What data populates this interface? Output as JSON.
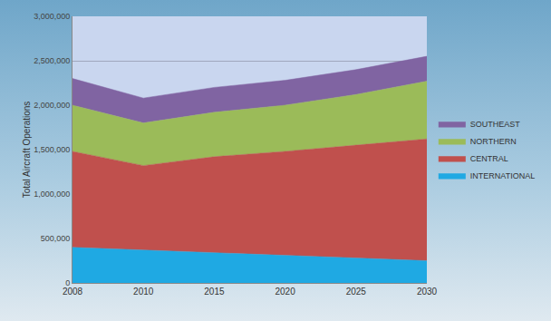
{
  "chart_data": {
    "type": "area",
    "stacked": true,
    "y_label": "Total Aircraft Operations",
    "categories": [
      "2008",
      "2010",
      "2015",
      "2020",
      "2025",
      "2030"
    ],
    "series": [
      {
        "name": "INTERNATIONAL",
        "color": "#1fa9e3",
        "values": [
          400000,
          370000,
          340000,
          310000,
          280000,
          250000
        ]
      },
      {
        "name": "CENTRAL",
        "color": "#c0504d",
        "values": [
          1080000,
          950000,
          1080000,
          1170000,
          1270000,
          1370000
        ]
      },
      {
        "name": "NORTHERN",
        "color": "#9bbb59",
        "values": [
          520000,
          480000,
          500000,
          520000,
          570000,
          650000
        ]
      },
      {
        "name": "SOUTHEAST",
        "color": "#8064a2",
        "values": [
          300000,
          280000,
          280000,
          280000,
          280000,
          280000
        ]
      }
    ],
    "ylim": [
      0,
      3000000
    ],
    "yticks": [
      0,
      {
        "value": 500000,
        "label": "500,000"
      },
      {
        "value": 1000000,
        "label": "1,000,000"
      },
      {
        "value": 1500000,
        "label": "1,500,000"
      },
      {
        "value": 2000000,
        "label": "2,000,000"
      },
      {
        "value": 2500000,
        "label": "2,500,000"
      },
      {
        "value": 3000000,
        "label": "3,000,000"
      }
    ],
    "grid": true,
    "legend": "right"
  }
}
